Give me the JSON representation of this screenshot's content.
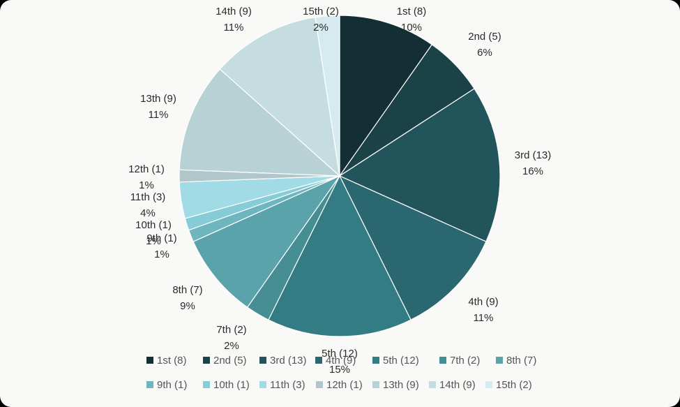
{
  "chart_data": {
    "type": "pie",
    "title": "",
    "legend_position": "bottom",
    "start_angle_deg": 0,
    "direction": "clockwise",
    "slices": [
      {
        "label": "1st (8)",
        "value": 8,
        "percent_label": "10%",
        "legend": "1st (8)",
        "color": "#132f34"
      },
      {
        "label": "2nd (5)",
        "value": 5,
        "percent_label": "6%",
        "legend": "2nd (5)",
        "color": "#1b4247"
      },
      {
        "label": "3rd (13)",
        "value": 13,
        "percent_label": "16%",
        "legend": "3rd (13)",
        "color": "#22555b"
      },
      {
        "label": "4th (9)",
        "value": 9,
        "percent_label": "11%",
        "legend": "4th (9)",
        "color": "#2a6770"
      },
      {
        "label": "5th (12)",
        "value": 12,
        "percent_label": "15%",
        "legend": "5th (12)",
        "color": "#347c83"
      },
      {
        "label": "7th (2)",
        "value": 2,
        "percent_label": "2%",
        "legend": "7th (2)",
        "color": "#468d94"
      },
      {
        "label": "8th (7)",
        "value": 7,
        "percent_label": "9%",
        "legend": "8th (7)",
        "color": "#5ba3ab"
      },
      {
        "label": "9th (1)",
        "value": 1,
        "percent_label": "1%",
        "legend": "9th (1)",
        "color": "#6db6bf"
      },
      {
        "label": "10th (1)",
        "value": 1,
        "percent_label": "1%",
        "legend": "10th (1)",
        "color": "#85ccd6"
      },
      {
        "label": "11th (3)",
        "value": 3,
        "percent_label": "4%",
        "legend": "11th (3)",
        "color": "#a1dce6"
      },
      {
        "label": "12th (1)",
        "value": 1,
        "percent_label": "1%",
        "legend": "12th (1)",
        "color": "#b1c6c9"
      },
      {
        "label": "13th (9)",
        "value": 9,
        "percent_label": "11%",
        "legend": "13th (9)",
        "color": "#b8d1d5"
      },
      {
        "label": "14th (9)",
        "value": 9,
        "percent_label": "11%",
        "legend": "14th (9)",
        "color": "#c5dde1"
      },
      {
        "label": "15th (2)",
        "value": 2,
        "percent_label": "2%",
        "legend": "15th (2)",
        "color": "#d5ebef"
      }
    ]
  }
}
